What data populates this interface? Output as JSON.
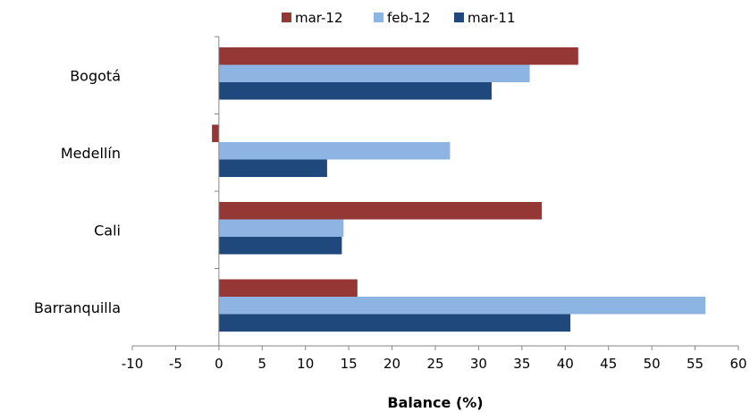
{
  "chart_data": {
    "type": "bar",
    "orientation": "horizontal",
    "title": "",
    "xlabel": "Balance (%)",
    "ylabel": "",
    "xlim": [
      -10,
      60
    ],
    "x_ticks": [
      -10,
      -5,
      0,
      5,
      10,
      15,
      20,
      25,
      30,
      35,
      40,
      45,
      50,
      55,
      60
    ],
    "categories": [
      "Bogotá",
      "Medellín",
      "Cali",
      "Barranquilla"
    ],
    "series": [
      {
        "name": "mar-12",
        "color": "#953735",
        "values": [
          41.5,
          -0.8,
          37.3,
          16.0
        ]
      },
      {
        "name": "feb-12",
        "color": "#8DB4E2",
        "values": [
          35.9,
          26.7,
          14.4,
          56.2
        ]
      },
      {
        "name": "mar-11",
        "color": "#1F497D",
        "values": [
          31.5,
          12.5,
          14.2,
          40.6
        ]
      }
    ],
    "legend_position": "top",
    "grid": false
  }
}
